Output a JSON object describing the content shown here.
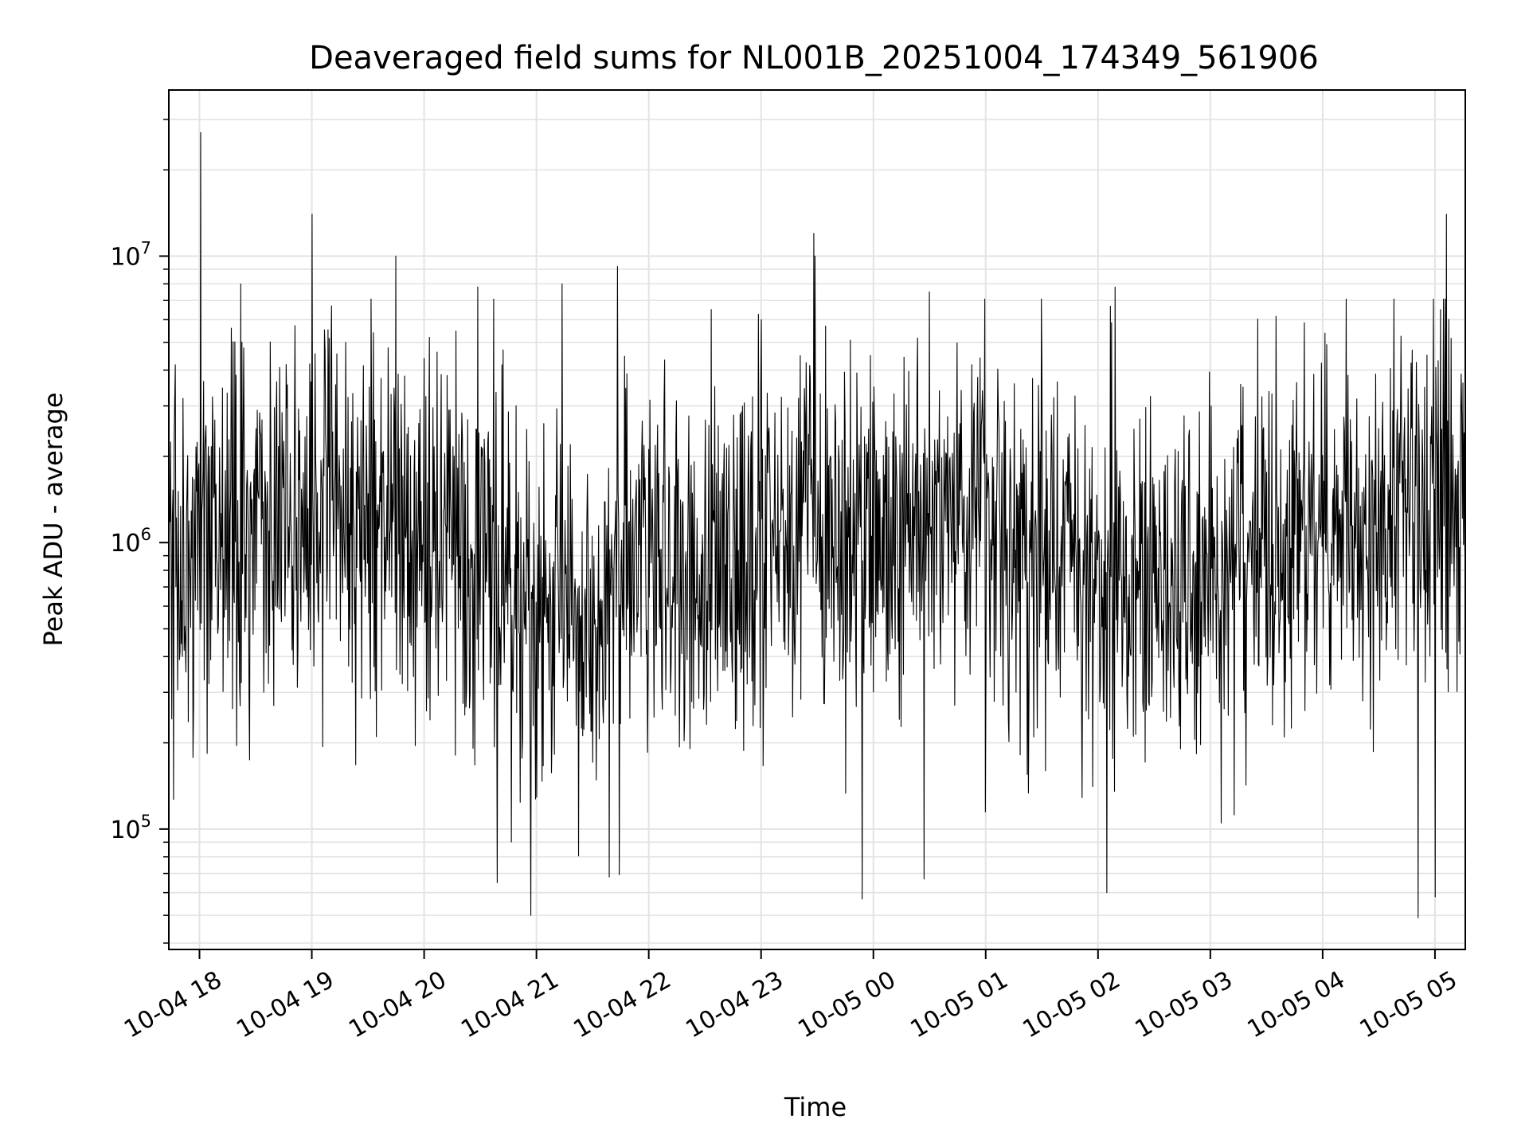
{
  "chart_data": {
    "type": "line",
    "title": "Deaveraged field sums for NL001B_20251004_174349_561906",
    "xlabel": "Time",
    "ylabel": "Peak ADU - average",
    "yscale": "log",
    "ylim": [
      38000,
      38000000
    ],
    "xlim_hours": [
      -0.273,
      11.27
    ],
    "grid": true,
    "x_ticks": [
      {
        "hour": 0,
        "label": "10-04 18"
      },
      {
        "hour": 1,
        "label": "10-04 19"
      },
      {
        "hour": 2,
        "label": "10-04 20"
      },
      {
        "hour": 3,
        "label": "10-04 21"
      },
      {
        "hour": 4,
        "label": "10-04 22"
      },
      {
        "hour": 5,
        "label": "10-04 23"
      },
      {
        "hour": 6,
        "label": "10-05 00"
      },
      {
        "hour": 7,
        "label": "10-05 01"
      },
      {
        "hour": 8,
        "label": "10-05 02"
      },
      {
        "hour": 9,
        "label": "10-05 03"
      },
      {
        "hour": 10,
        "label": "10-05 04"
      },
      {
        "hour": 11,
        "label": "10-05 05"
      }
    ],
    "y_ticks": [
      {
        "value": 100000,
        "base": "10",
        "exp": "5"
      },
      {
        "value": 1000000,
        "base": "10",
        "exp": "6"
      },
      {
        "value": 10000000,
        "base": "10",
        "exp": "7"
      }
    ],
    "series": [
      {
        "name": "field sums",
        "color": "#000000",
        "x_start_hour": -0.273,
        "x_end_hour": 11.27,
        "n_points": 2200,
        "approx_median": 1000000,
        "spikes": [
          {
            "hour": 0.01,
            "value": 27000000
          },
          {
            "hour": 1.0,
            "value": 14000000
          },
          {
            "hour": 1.75,
            "value": 10000000
          },
          {
            "hour": 5.47,
            "value": 12000000
          },
          {
            "hour": 5.48,
            "value": 10000000
          },
          {
            "hour": 11.1,
            "value": 14000000
          },
          {
            "hour": 0.37,
            "value": 8000000
          },
          {
            "hour": 3.72,
            "value": 9200000
          },
          {
            "hour": 3.23,
            "value": 8000000
          },
          {
            "hour": 8.15,
            "value": 7800000
          },
          {
            "hour": 2.48,
            "value": 7800000
          },
          {
            "hour": 1.3,
            "value": 5000000
          },
          {
            "hour": 6.5,
            "value": 7500000
          },
          {
            "hour": 10.85,
            "value": 6700000
          },
          {
            "hour": 5.0,
            "value": 6000000
          }
        ],
        "troughs": [
          {
            "hour": 2.95,
            "value": 50000
          },
          {
            "hour": 5.9,
            "value": 57000
          },
          {
            "hour": 10.85,
            "value": 49000
          },
          {
            "hour": 11.0,
            "value": 58000
          },
          {
            "hour": 2.65,
            "value": 65000
          },
          {
            "hour": 8.08,
            "value": 60000
          },
          {
            "hour": 6.45,
            "value": 67000
          },
          {
            "hour": 3.65,
            "value": 68000
          }
        ]
      }
    ]
  }
}
